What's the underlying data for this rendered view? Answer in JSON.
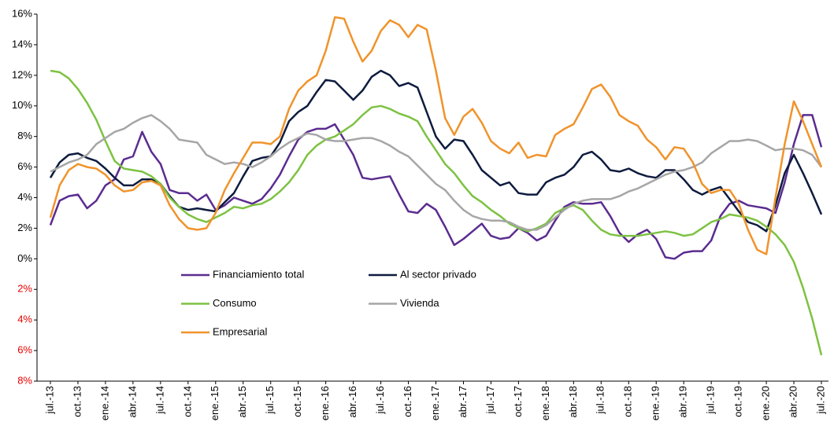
{
  "chart_data": {
    "type": "line",
    "categories": [
      "jul.-13",
      null,
      null,
      "oct.-13",
      null,
      null,
      "ene.-14",
      null,
      null,
      "abr.-14",
      null,
      null,
      "jul.-14",
      null,
      null,
      "oct.-14",
      null,
      null,
      "ene.-15",
      null,
      null,
      "abr.-15",
      null,
      null,
      "jul.-15",
      null,
      null,
      "oct.-15",
      null,
      null,
      "ene.-16",
      null,
      null,
      "abr.-16",
      null,
      null,
      "jul.-16",
      null,
      null,
      "oct.-16",
      null,
      null,
      "ene.-17",
      null,
      null,
      "abr.-17",
      null,
      null,
      "jul.-17",
      null,
      null,
      "oct.-17",
      null,
      null,
      "ene.-18",
      null,
      null,
      "abr.-18",
      null,
      null,
      "jul.-18",
      null,
      null,
      "oct.-18",
      null,
      null,
      "ene.-19",
      null,
      null,
      "abr.-19",
      null,
      null,
      "jul.-19",
      null,
      null,
      "oct.-19",
      null,
      null,
      "ene.-20",
      null,
      null,
      "abr.-20",
      null,
      null,
      "jul.-20"
    ],
    "series": [
      {
        "name": "Financiamiento total",
        "color": "#5b2c8f",
        "values": [
          2.2,
          3.8,
          4.1,
          4.2,
          3.3,
          3.8,
          4.8,
          5.2,
          6.5,
          6.7,
          8.3,
          7.0,
          6.2,
          4.5,
          4.3,
          4.3,
          3.8,
          4.2,
          3.2,
          3.5,
          4.0,
          3.8,
          3.6,
          3.9,
          4.6,
          5.5,
          6.7,
          7.8,
          8.3,
          8.5,
          8.5,
          8.8,
          7.8,
          6.8,
          5.3,
          5.2,
          5.3,
          5.4,
          4.2,
          3.1,
          3.0,
          3.6,
          3.2,
          2.1,
          0.9,
          1.3,
          1.8,
          2.3,
          1.5,
          1.3,
          1.4,
          2.0,
          1.7,
          1.2,
          1.5,
          2.5,
          3.4,
          3.7,
          3.6,
          3.6,
          3.7,
          2.8,
          1.7,
          1.1,
          1.6,
          1.9,
          1.3,
          0.1,
          0.0,
          0.4,
          0.5,
          0.5,
          1.2,
          2.8,
          3.6,
          3.8,
          3.5,
          3.4,
          3.3,
          3.0,
          5.0,
          7.5,
          9.4,
          9.4,
          7.3
        ]
      },
      {
        "name": "Al sector privado",
        "color": "#0d1b3e",
        "values": [
          5.3,
          6.3,
          6.8,
          6.9,
          6.6,
          6.4,
          5.9,
          5.3,
          4.8,
          4.8,
          5.2,
          5.2,
          4.9,
          4.1,
          3.4,
          3.2,
          3.3,
          3.2,
          3.1,
          3.7,
          4.3,
          5.4,
          6.4,
          6.6,
          6.7,
          7.6,
          9.0,
          9.6,
          10.0,
          10.9,
          11.7,
          11.6,
          11.0,
          10.4,
          11.0,
          11.9,
          12.3,
          12.0,
          11.3,
          11.5,
          11.2,
          9.6,
          8.0,
          7.2,
          7.8,
          7.7,
          6.8,
          5.8,
          5.3,
          4.8,
          5.0,
          4.3,
          4.2,
          4.2,
          5.0,
          5.3,
          5.5,
          6.0,
          6.8,
          7.0,
          6.5,
          5.8,
          5.7,
          5.9,
          5.6,
          5.4,
          5.3,
          5.8,
          5.8,
          5.2,
          4.5,
          4.2,
          4.5,
          4.7,
          3.9,
          3.1,
          2.4,
          2.2,
          1.8,
          3.5,
          5.6,
          6.8,
          5.6,
          4.3,
          2.9
        ]
      },
      {
        "name": "Consumo",
        "color": "#7dc242",
        "values": [
          12.3,
          12.2,
          11.8,
          11.1,
          10.2,
          9.1,
          7.7,
          6.4,
          5.9,
          5.8,
          5.7,
          5.4,
          4.9,
          4.0,
          3.4,
          2.9,
          2.6,
          2.4,
          2.7,
          3.0,
          3.4,
          3.3,
          3.5,
          3.6,
          3.9,
          4.4,
          5.0,
          5.8,
          6.8,
          7.4,
          7.8,
          8.0,
          8.4,
          8.8,
          9.4,
          9.9,
          10.0,
          9.8,
          9.5,
          9.3,
          9.0,
          8.0,
          7.1,
          6.2,
          5.6,
          4.8,
          4.1,
          3.7,
          3.2,
          2.8,
          2.3,
          2.0,
          1.8,
          2.0,
          2.3,
          3.0,
          3.3,
          3.5,
          3.2,
          2.5,
          1.9,
          1.6,
          1.5,
          1.5,
          1.5,
          1.6,
          1.7,
          1.8,
          1.7,
          1.5,
          1.6,
          2.0,
          2.4,
          2.6,
          2.9,
          2.8,
          2.7,
          2.5,
          2.1,
          1.6,
          0.9,
          -0.2,
          -1.9,
          -3.9,
          -6.3
        ]
      },
      {
        "name": "Vivienda",
        "color": "#a6a6a6",
        "values": [
          5.7,
          6.0,
          6.3,
          6.5,
          6.8,
          7.5,
          7.9,
          8.3,
          8.5,
          8.9,
          9.2,
          9.4,
          9.0,
          8.5,
          7.8,
          7.7,
          7.6,
          6.8,
          6.5,
          6.2,
          6.3,
          6.2,
          6.0,
          6.3,
          6.7,
          7.2,
          7.6,
          7.9,
          8.2,
          8.1,
          7.8,
          7.7,
          7.7,
          7.8,
          7.9,
          7.9,
          7.7,
          7.4,
          7.0,
          6.7,
          6.1,
          5.5,
          4.9,
          4.5,
          3.8,
          3.2,
          2.8,
          2.6,
          2.5,
          2.5,
          2.4,
          2.1,
          1.9,
          1.9,
          2.2,
          2.7,
          3.2,
          3.6,
          3.8,
          3.9,
          3.9,
          3.9,
          4.1,
          4.4,
          4.6,
          4.9,
          5.2,
          5.5,
          5.7,
          5.8,
          6.0,
          6.3,
          6.9,
          7.3,
          7.7,
          7.7,
          7.8,
          7.7,
          7.4,
          7.1,
          7.2,
          7.2,
          7.1,
          6.8,
          6.0
        ]
      },
      {
        "name": "Empresarial",
        "color": "#f0932b",
        "values": [
          2.7,
          4.8,
          5.8,
          6.2,
          6.0,
          5.9,
          5.5,
          4.8,
          4.4,
          4.5,
          5.0,
          5.1,
          4.8,
          3.5,
          2.6,
          2.0,
          1.9,
          2.0,
          3.0,
          4.5,
          5.6,
          6.6,
          7.6,
          7.6,
          7.5,
          8.0,
          9.8,
          11.0,
          11.6,
          12.0,
          13.6,
          15.8,
          15.7,
          14.2,
          12.9,
          13.6,
          14.9,
          15.6,
          15.3,
          14.5,
          15.3,
          15.0,
          12.3,
          9.2,
          8.1,
          9.3,
          9.8,
          8.9,
          7.7,
          7.2,
          6.9,
          7.6,
          6.6,
          6.8,
          6.7,
          8.1,
          8.5,
          8.8,
          9.9,
          11.1,
          11.4,
          10.6,
          9.4,
          9.0,
          8.7,
          7.8,
          7.3,
          6.5,
          7.3,
          7.2,
          6.3,
          4.9,
          4.3,
          4.5,
          4.5,
          3.6,
          1.9,
          0.6,
          0.3,
          4.0,
          7.5,
          10.3,
          9.0,
          7.5,
          6.0
        ]
      }
    ],
    "ylim": [
      -8,
      16
    ],
    "yticks": [
      {
        "value": -8,
        "label": "8%"
      },
      {
        "value": -6,
        "label": "6%"
      },
      {
        "value": -4,
        "label": "4%"
      },
      {
        "value": -2,
        "label": "2%"
      },
      {
        "value": 0,
        "label": "0%"
      },
      {
        "value": 2,
        "label": "2%"
      },
      {
        "value": 4,
        "label": "4%"
      },
      {
        "value": 6,
        "label": "6%"
      },
      {
        "value": 8,
        "label": "8%"
      },
      {
        "value": 10,
        "label": "10%"
      },
      {
        "value": 12,
        "label": "12%"
      },
      {
        "value": 14,
        "label": "14%"
      },
      {
        "value": 16,
        "label": "16%"
      }
    ],
    "negative_tick_color": "#e60000",
    "grid": false,
    "legend": "lower-left"
  }
}
